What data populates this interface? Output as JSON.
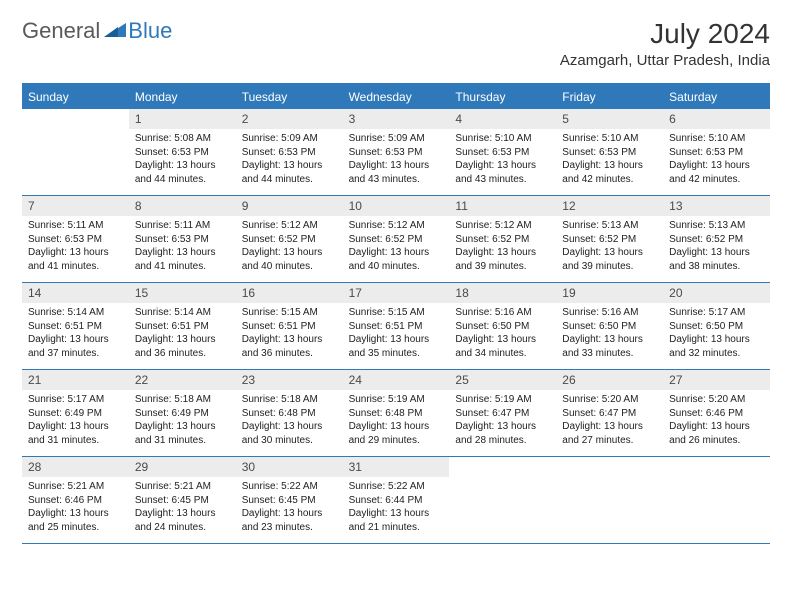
{
  "logo": {
    "general": "General",
    "blue": "Blue"
  },
  "title": "July 2024",
  "location": "Azamgarh, Uttar Pradesh, India",
  "colors": {
    "accent": "#2f79ba",
    "header_text": "#ffffff",
    "daynum_bg": "#ececec",
    "text": "#222222"
  },
  "day_names": [
    "Sunday",
    "Monday",
    "Tuesday",
    "Wednesday",
    "Thursday",
    "Friday",
    "Saturday"
  ],
  "weeks": [
    [
      {
        "n": "",
        "sr": "",
        "ss": "",
        "dl1": "",
        "dl2": ""
      },
      {
        "n": "1",
        "sr": "Sunrise: 5:08 AM",
        "ss": "Sunset: 6:53 PM",
        "dl1": "Daylight: 13 hours",
        "dl2": "and 44 minutes."
      },
      {
        "n": "2",
        "sr": "Sunrise: 5:09 AM",
        "ss": "Sunset: 6:53 PM",
        "dl1": "Daylight: 13 hours",
        "dl2": "and 44 minutes."
      },
      {
        "n": "3",
        "sr": "Sunrise: 5:09 AM",
        "ss": "Sunset: 6:53 PM",
        "dl1": "Daylight: 13 hours",
        "dl2": "and 43 minutes."
      },
      {
        "n": "4",
        "sr": "Sunrise: 5:10 AM",
        "ss": "Sunset: 6:53 PM",
        "dl1": "Daylight: 13 hours",
        "dl2": "and 43 minutes."
      },
      {
        "n": "5",
        "sr": "Sunrise: 5:10 AM",
        "ss": "Sunset: 6:53 PM",
        "dl1": "Daylight: 13 hours",
        "dl2": "and 42 minutes."
      },
      {
        "n": "6",
        "sr": "Sunrise: 5:10 AM",
        "ss": "Sunset: 6:53 PM",
        "dl1": "Daylight: 13 hours",
        "dl2": "and 42 minutes."
      }
    ],
    [
      {
        "n": "7",
        "sr": "Sunrise: 5:11 AM",
        "ss": "Sunset: 6:53 PM",
        "dl1": "Daylight: 13 hours",
        "dl2": "and 41 minutes."
      },
      {
        "n": "8",
        "sr": "Sunrise: 5:11 AM",
        "ss": "Sunset: 6:53 PM",
        "dl1": "Daylight: 13 hours",
        "dl2": "and 41 minutes."
      },
      {
        "n": "9",
        "sr": "Sunrise: 5:12 AM",
        "ss": "Sunset: 6:52 PM",
        "dl1": "Daylight: 13 hours",
        "dl2": "and 40 minutes."
      },
      {
        "n": "10",
        "sr": "Sunrise: 5:12 AM",
        "ss": "Sunset: 6:52 PM",
        "dl1": "Daylight: 13 hours",
        "dl2": "and 40 minutes."
      },
      {
        "n": "11",
        "sr": "Sunrise: 5:12 AM",
        "ss": "Sunset: 6:52 PM",
        "dl1": "Daylight: 13 hours",
        "dl2": "and 39 minutes."
      },
      {
        "n": "12",
        "sr": "Sunrise: 5:13 AM",
        "ss": "Sunset: 6:52 PM",
        "dl1": "Daylight: 13 hours",
        "dl2": "and 39 minutes."
      },
      {
        "n": "13",
        "sr": "Sunrise: 5:13 AM",
        "ss": "Sunset: 6:52 PM",
        "dl1": "Daylight: 13 hours",
        "dl2": "and 38 minutes."
      }
    ],
    [
      {
        "n": "14",
        "sr": "Sunrise: 5:14 AM",
        "ss": "Sunset: 6:51 PM",
        "dl1": "Daylight: 13 hours",
        "dl2": "and 37 minutes."
      },
      {
        "n": "15",
        "sr": "Sunrise: 5:14 AM",
        "ss": "Sunset: 6:51 PM",
        "dl1": "Daylight: 13 hours",
        "dl2": "and 36 minutes."
      },
      {
        "n": "16",
        "sr": "Sunrise: 5:15 AM",
        "ss": "Sunset: 6:51 PM",
        "dl1": "Daylight: 13 hours",
        "dl2": "and 36 minutes."
      },
      {
        "n": "17",
        "sr": "Sunrise: 5:15 AM",
        "ss": "Sunset: 6:51 PM",
        "dl1": "Daylight: 13 hours",
        "dl2": "and 35 minutes."
      },
      {
        "n": "18",
        "sr": "Sunrise: 5:16 AM",
        "ss": "Sunset: 6:50 PM",
        "dl1": "Daylight: 13 hours",
        "dl2": "and 34 minutes."
      },
      {
        "n": "19",
        "sr": "Sunrise: 5:16 AM",
        "ss": "Sunset: 6:50 PM",
        "dl1": "Daylight: 13 hours",
        "dl2": "and 33 minutes."
      },
      {
        "n": "20",
        "sr": "Sunrise: 5:17 AM",
        "ss": "Sunset: 6:50 PM",
        "dl1": "Daylight: 13 hours",
        "dl2": "and 32 minutes."
      }
    ],
    [
      {
        "n": "21",
        "sr": "Sunrise: 5:17 AM",
        "ss": "Sunset: 6:49 PM",
        "dl1": "Daylight: 13 hours",
        "dl2": "and 31 minutes."
      },
      {
        "n": "22",
        "sr": "Sunrise: 5:18 AM",
        "ss": "Sunset: 6:49 PM",
        "dl1": "Daylight: 13 hours",
        "dl2": "and 31 minutes."
      },
      {
        "n": "23",
        "sr": "Sunrise: 5:18 AM",
        "ss": "Sunset: 6:48 PM",
        "dl1": "Daylight: 13 hours",
        "dl2": "and 30 minutes."
      },
      {
        "n": "24",
        "sr": "Sunrise: 5:19 AM",
        "ss": "Sunset: 6:48 PM",
        "dl1": "Daylight: 13 hours",
        "dl2": "and 29 minutes."
      },
      {
        "n": "25",
        "sr": "Sunrise: 5:19 AM",
        "ss": "Sunset: 6:47 PM",
        "dl1": "Daylight: 13 hours",
        "dl2": "and 28 minutes."
      },
      {
        "n": "26",
        "sr": "Sunrise: 5:20 AM",
        "ss": "Sunset: 6:47 PM",
        "dl1": "Daylight: 13 hours",
        "dl2": "and 27 minutes."
      },
      {
        "n": "27",
        "sr": "Sunrise: 5:20 AM",
        "ss": "Sunset: 6:46 PM",
        "dl1": "Daylight: 13 hours",
        "dl2": "and 26 minutes."
      }
    ],
    [
      {
        "n": "28",
        "sr": "Sunrise: 5:21 AM",
        "ss": "Sunset: 6:46 PM",
        "dl1": "Daylight: 13 hours",
        "dl2": "and 25 minutes."
      },
      {
        "n": "29",
        "sr": "Sunrise: 5:21 AM",
        "ss": "Sunset: 6:45 PM",
        "dl1": "Daylight: 13 hours",
        "dl2": "and 24 minutes."
      },
      {
        "n": "30",
        "sr": "Sunrise: 5:22 AM",
        "ss": "Sunset: 6:45 PM",
        "dl1": "Daylight: 13 hours",
        "dl2": "and 23 minutes."
      },
      {
        "n": "31",
        "sr": "Sunrise: 5:22 AM",
        "ss": "Sunset: 6:44 PM",
        "dl1": "Daylight: 13 hours",
        "dl2": "and 21 minutes."
      },
      {
        "n": "",
        "sr": "",
        "ss": "",
        "dl1": "",
        "dl2": ""
      },
      {
        "n": "",
        "sr": "",
        "ss": "",
        "dl1": "",
        "dl2": ""
      },
      {
        "n": "",
        "sr": "",
        "ss": "",
        "dl1": "",
        "dl2": ""
      }
    ]
  ]
}
